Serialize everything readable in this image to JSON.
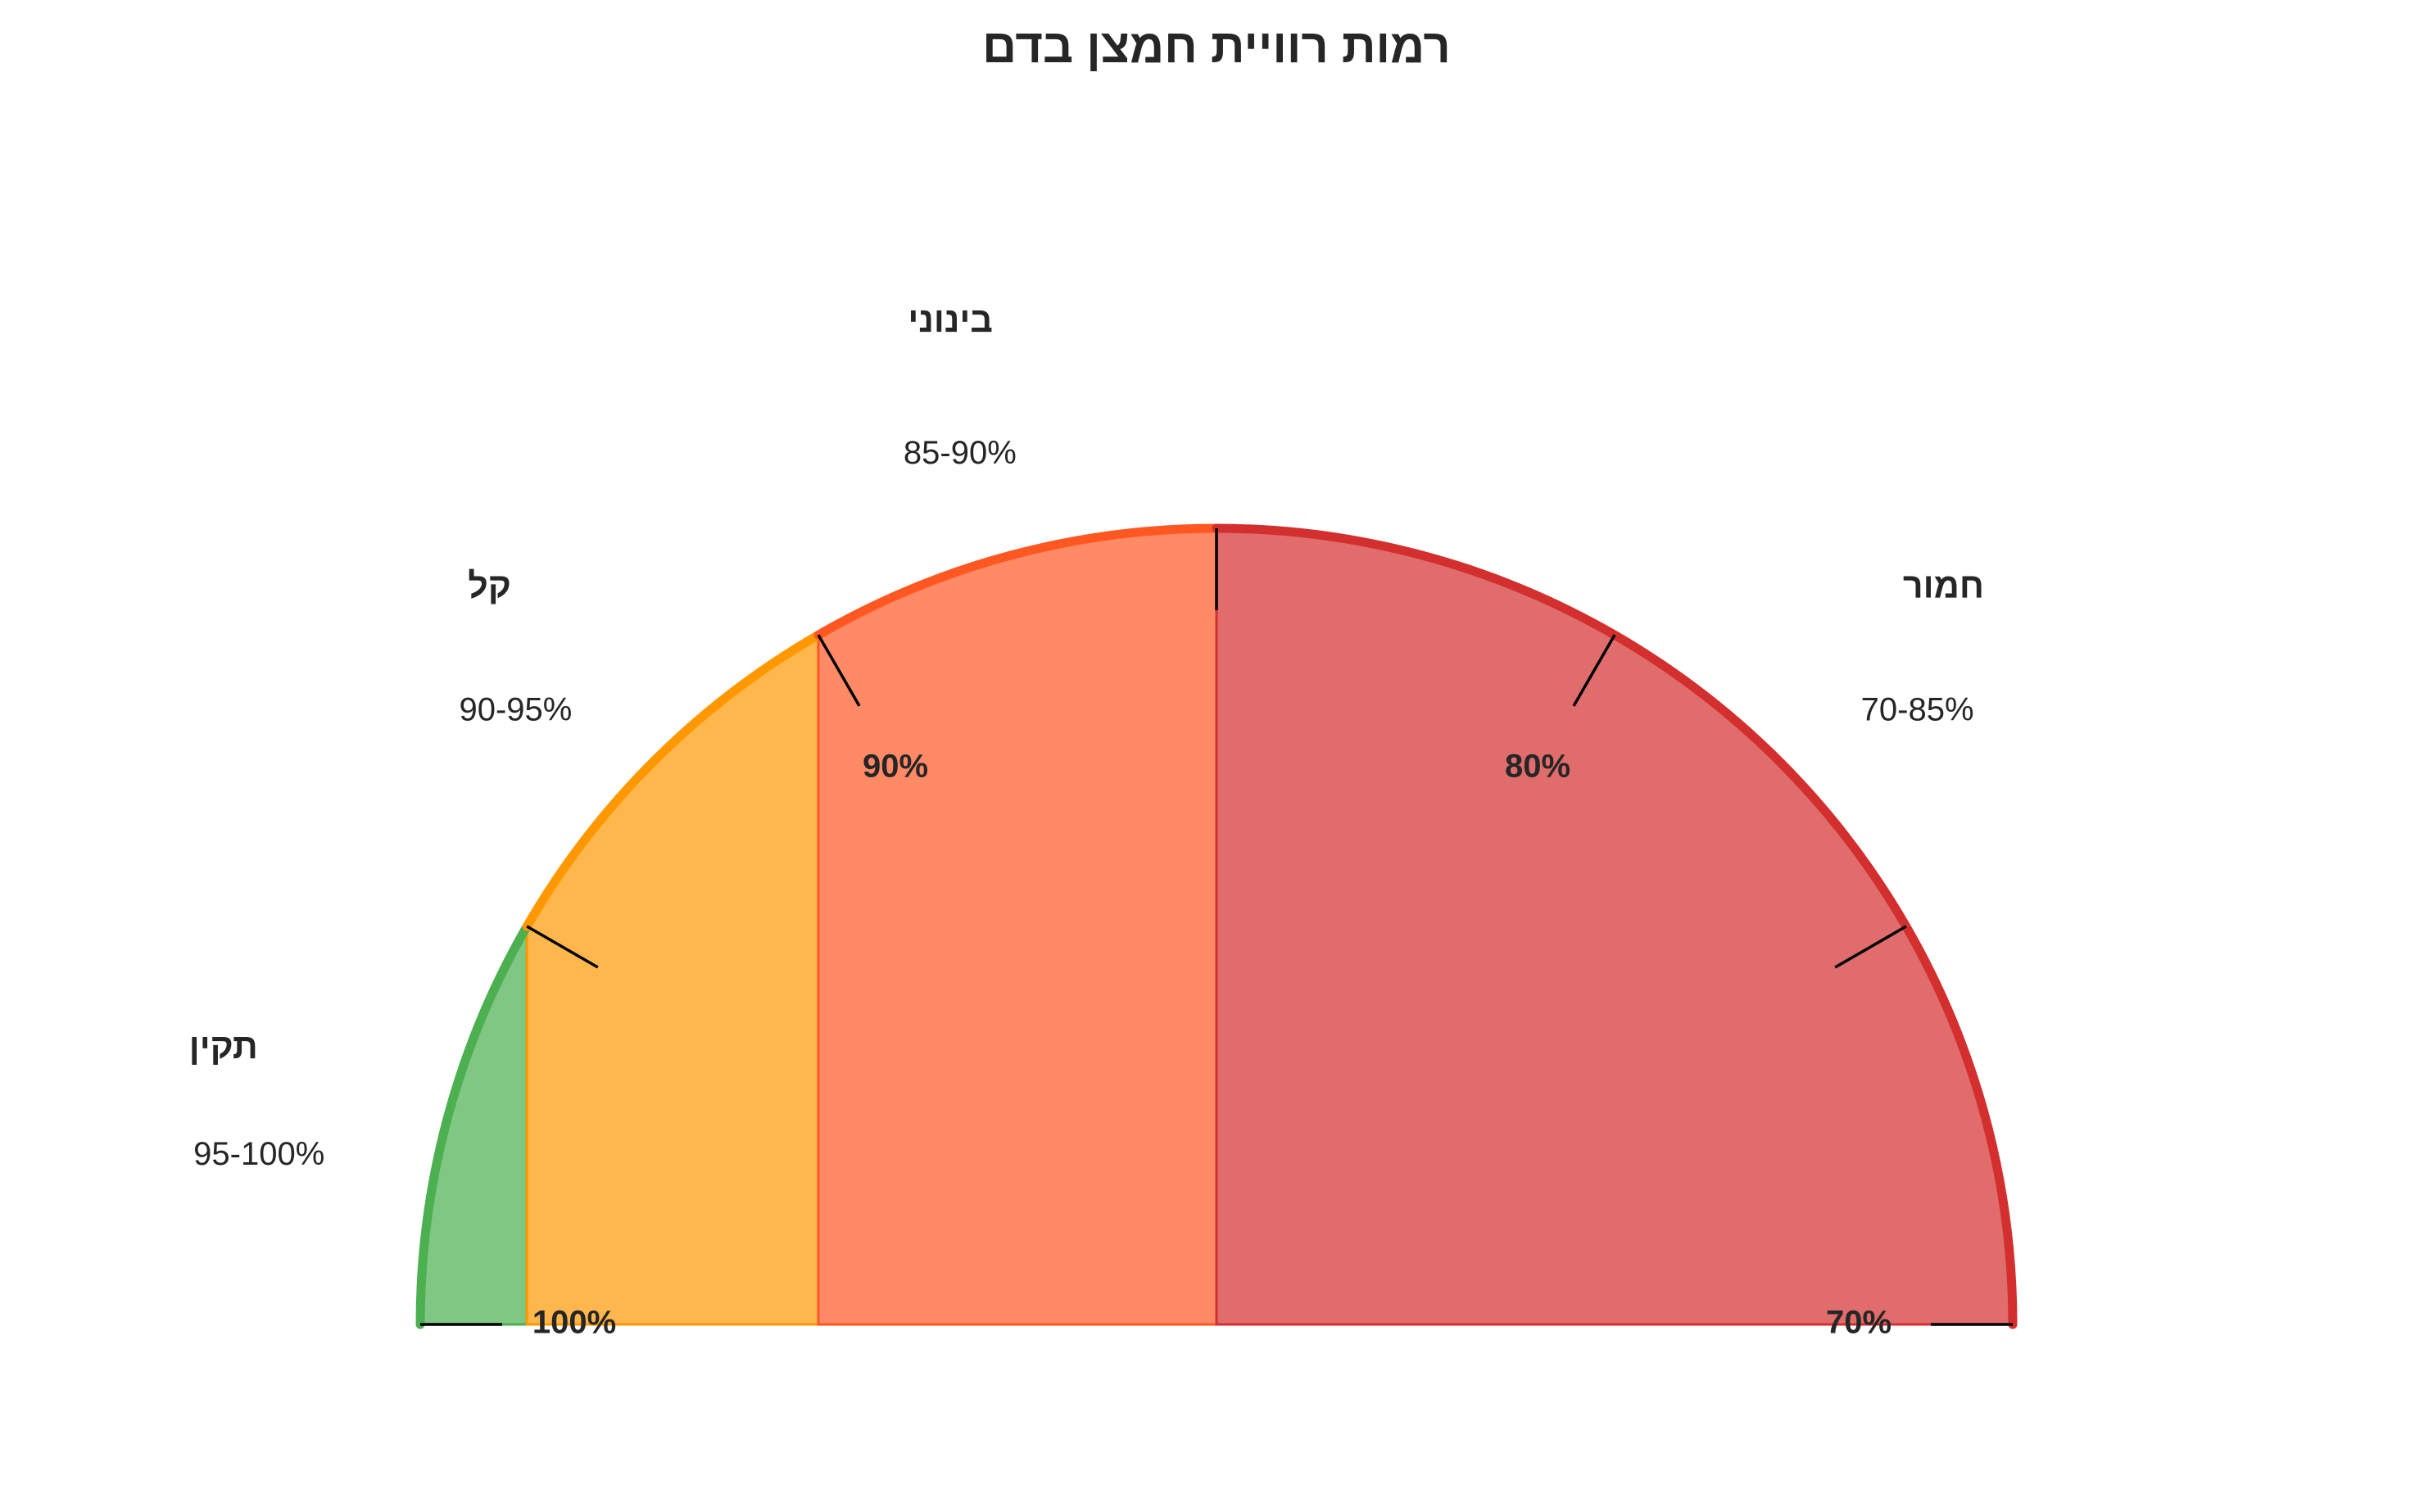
{
  "chart_data": {
    "type": "gauge",
    "title": "רמות רוויית חמצן בדם",
    "scale_min": 70,
    "scale_max": 100,
    "direction": "100 on the left, 70 on the right",
    "zones": [
      {
        "name": "תקין",
        "range_label": "95-100%",
        "from": 95,
        "to": 100,
        "fill": "#81C784",
        "edge": "#4CAF50"
      },
      {
        "name": "קל",
        "range_label": "90-95%",
        "from": 90,
        "to": 95,
        "fill": "#FFB74D",
        "edge": "#FF9800"
      },
      {
        "name": "בינוני",
        "range_label": "85-90%",
        "from": 85,
        "to": 90,
        "fill": "#FF8A65",
        "edge": "#FF5722"
      },
      {
        "name": "חמור",
        "range_label": "70-85%",
        "from": 70,
        "to": 85,
        "fill": "#E06C6C",
        "edge": "#D32F2F"
      }
    ],
    "ticks": [
      {
        "value": 100,
        "label": "100%"
      },
      {
        "value": 95,
        "label": ""
      },
      {
        "value": 90,
        "label": "90%"
      },
      {
        "value": 85,
        "label": ""
      },
      {
        "value": 80,
        "label": "80%"
      },
      {
        "value": 75,
        "label": ""
      },
      {
        "value": 70,
        "label": "70%"
      }
    ]
  }
}
